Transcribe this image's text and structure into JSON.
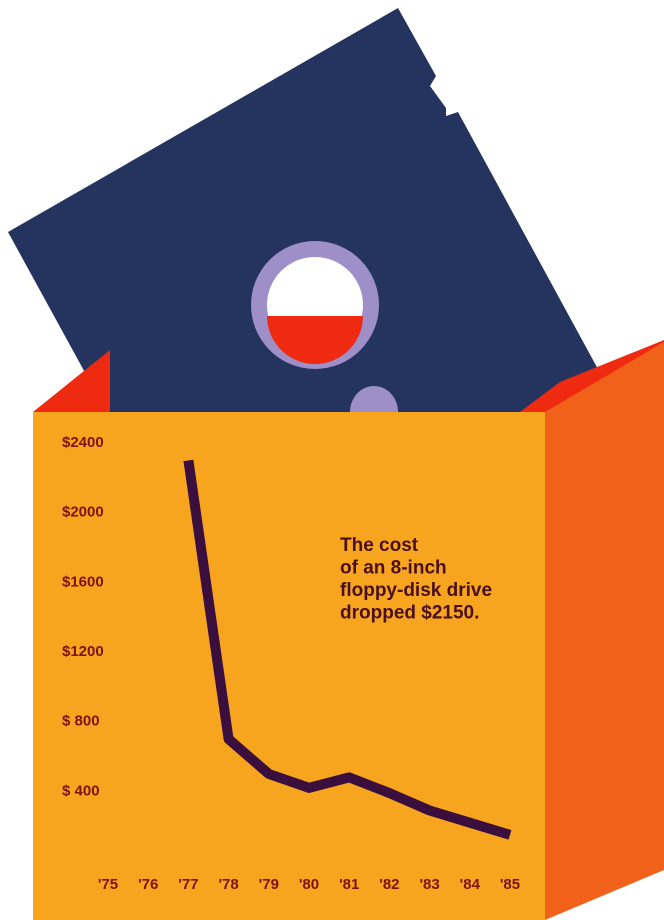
{
  "chart_data": {
    "type": "line",
    "annotation": [
      "The cost",
      "of an 8-inch",
      "floppy-disk drive",
      "dropped $2150."
    ],
    "categories": [
      "'75",
      "'76",
      "'77",
      "'78",
      "'79",
      "'80",
      "'81",
      "'82",
      "'83",
      "'84",
      "'85"
    ],
    "values": [
      null,
      null,
      2300,
      700,
      500,
      420,
      480,
      390,
      290,
      220,
      150
    ],
    "color": "#3b0f3d",
    "ylim": [
      0,
      2400
    ],
    "yticks": [
      {
        "value": 400,
        "label": "$ 400"
      },
      {
        "value": 800,
        "label": "$ 800"
      },
      {
        "value": 1200,
        "label": "$1200"
      },
      {
        "value": 1600,
        "label": "$1600"
      },
      {
        "value": 2000,
        "label": "$2000"
      },
      {
        "value": 2400,
        "label": "$2400"
      }
    ]
  }
}
